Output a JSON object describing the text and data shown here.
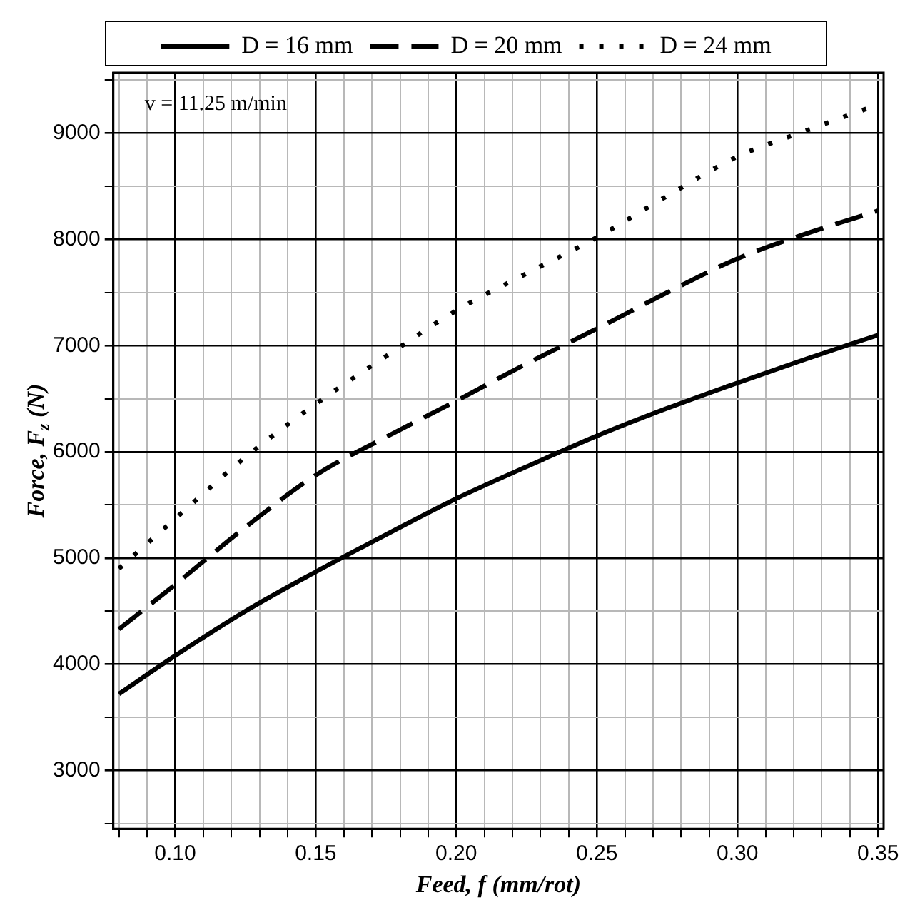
{
  "chart_data": {
    "type": "line",
    "xlabel": "Feed, f (mm/rot)",
    "ylabel": "Force, F$_{z}$ (N)",
    "annotations": [
      "v = 11.25 m/min"
    ],
    "x": [
      0.08,
      0.1,
      0.125,
      0.15,
      0.175,
      0.2,
      0.225,
      0.25,
      0.275,
      0.3,
      0.325,
      0.35
    ],
    "series": [
      {
        "name": "D = 16 mm",
        "color": "#000000",
        "line_style": "solid",
        "values": [
          3720,
          4080,
          4500,
          4870,
          5220,
          5560,
          5860,
          6150,
          6410,
          6650,
          6880,
          7100
        ]
      },
      {
        "name": "D = 20 mm",
        "color": "#000000",
        "line_style": "dashed",
        "values": [
          4330,
          4750,
          5290,
          5780,
          6140,
          6480,
          6830,
          7160,
          7500,
          7820,
          8060,
          8270
        ]
      },
      {
        "name": "D = 24 mm",
        "color": "#000000",
        "line_style": "dotted",
        "values": [
          4900,
          5370,
          5950,
          6450,
          6900,
          7330,
          7680,
          8020,
          8410,
          8780,
          9030,
          9270
        ]
      }
    ],
    "xlim": [
      0.078,
      0.352
    ],
    "ylim": [
      2450,
      9570
    ],
    "xticks": [
      {
        "value": 0.08,
        "label": null
      },
      {
        "value": 0.09,
        "label": null
      },
      {
        "value": 0.1,
        "label": "0.10"
      },
      {
        "value": 0.11,
        "label": null
      },
      {
        "value": 0.12,
        "label": null
      },
      {
        "value": 0.13,
        "label": null
      },
      {
        "value": 0.14,
        "label": null
      },
      {
        "value": 0.15,
        "label": "0.15"
      },
      {
        "value": 0.16,
        "label": null
      },
      {
        "value": 0.17,
        "label": null
      },
      {
        "value": 0.18,
        "label": null
      },
      {
        "value": 0.19,
        "label": null
      },
      {
        "value": 0.2,
        "label": "0.20"
      },
      {
        "value": 0.21,
        "label": null
      },
      {
        "value": 0.22,
        "label": null
      },
      {
        "value": 0.23,
        "label": null
      },
      {
        "value": 0.24,
        "label": null
      },
      {
        "value": 0.25,
        "label": "0.25"
      },
      {
        "value": 0.26,
        "label": null
      },
      {
        "value": 0.27,
        "label": null
      },
      {
        "value": 0.28,
        "label": null
      },
      {
        "value": 0.29,
        "label": null
      },
      {
        "value": 0.3,
        "label": "0.30"
      },
      {
        "value": 0.31,
        "label": null
      },
      {
        "value": 0.32,
        "label": null
      },
      {
        "value": 0.33,
        "label": null
      },
      {
        "value": 0.34,
        "label": null
      },
      {
        "value": 0.35,
        "label": "0.35"
      }
    ],
    "yticks": [
      {
        "value": 2500,
        "label": null
      },
      3000,
      {
        "value": 3500,
        "label": null
      },
      4000,
      {
        "value": 4500,
        "label": null
      },
      5000,
      {
        "value": 5500,
        "label": null
      },
      6000,
      {
        "value": 6500,
        "label": null
      },
      7000,
      {
        "value": 7500,
        "label": null
      },
      8000,
      {
        "value": 8500,
        "label": null
      },
      9000,
      {
        "value": 9500,
        "label": null
      }
    ],
    "grid": true,
    "legend": "top"
  }
}
